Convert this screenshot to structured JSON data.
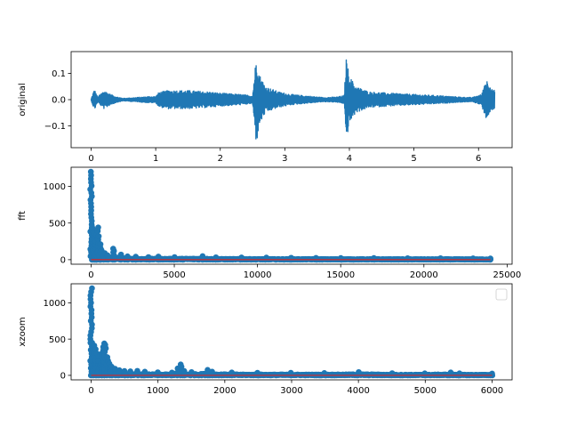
{
  "figure": {
    "background": "#ffffff"
  },
  "colors": {
    "series": "#1f77b4",
    "baseline": "#d62728",
    "axis": "#000000"
  },
  "chart_data": [
    {
      "type": "line",
      "ylabel": "original",
      "xlim": [
        -0.31,
        6.52
      ],
      "ylim": [
        -0.183,
        0.183
      ],
      "xticks": [
        0,
        1,
        2,
        3,
        4,
        5,
        6
      ],
      "xtick_labels": [
        "0",
        "1",
        "2",
        "3",
        "4",
        "5",
        "6"
      ],
      "yticks": [
        -0.1,
        0.0,
        0.1
      ],
      "ytick_labels": [
        "−0.1",
        "0.0",
        "0.1"
      ],
      "series": [
        {
          "envelope": [
            [
              0.0,
              0.003
            ],
            [
              0.05,
              0.04
            ],
            [
              0.1,
              0.01
            ],
            [
              0.2,
              0.035
            ],
            [
              0.3,
              0.02
            ],
            [
              0.4,
              0.01
            ],
            [
              0.5,
              0.005
            ],
            [
              0.7,
              0.008
            ],
            [
              0.9,
              0.012
            ],
            [
              1.0,
              0.012
            ],
            [
              1.05,
              0.028
            ],
            [
              1.2,
              0.035
            ],
            [
              1.5,
              0.035
            ],
            [
              1.8,
              0.03
            ],
            [
              2.0,
              0.025
            ],
            [
              2.3,
              0.02
            ],
            [
              2.5,
              0.015
            ],
            [
              2.56,
              0.175
            ],
            [
              2.6,
              0.1
            ],
            [
              2.7,
              0.05
            ],
            [
              2.9,
              0.03
            ],
            [
              3.1,
              0.02
            ],
            [
              3.3,
              0.015
            ],
            [
              3.6,
              0.008
            ],
            [
              3.8,
              0.01
            ],
            [
              3.92,
              0.015
            ],
            [
              3.95,
              0.16
            ],
            [
              4.0,
              0.09
            ],
            [
              4.1,
              0.05
            ],
            [
              4.3,
              0.03
            ],
            [
              4.6,
              0.025
            ],
            [
              5.0,
              0.02
            ],
            [
              5.4,
              0.015
            ],
            [
              5.7,
              0.01
            ],
            [
              5.9,
              0.008
            ],
            [
              6.05,
              0.02
            ],
            [
              6.1,
              0.07
            ],
            [
              6.15,
              0.075
            ],
            [
              6.2,
              0.04
            ],
            [
              6.25,
              0.035
            ]
          ]
        }
      ]
    },
    {
      "type": "scatter",
      "ylabel": "fft",
      "xlim": [
        -1200,
        25300
      ],
      "ylim": [
        -62,
        1262
      ],
      "xticks": [
        0,
        5000,
        10000,
        15000,
        20000,
        25000
      ],
      "xtick_labels": [
        "0",
        "5000",
        "10000",
        "15000",
        "20000",
        "25000"
      ],
      "yticks": [
        0,
        500,
        1000
      ],
      "ytick_labels": [
        "0",
        "500",
        "1000"
      ],
      "series": [
        {
          "x_max": 24000,
          "peaks": [
            [
              0,
              1200
            ],
            [
              80,
              450
            ],
            [
              150,
              420
            ],
            [
              200,
              360
            ],
            [
              250,
              300
            ],
            [
              300,
              250
            ],
            [
              380,
              440
            ],
            [
              450,
              320
            ],
            [
              520,
              210
            ],
            [
              620,
              130
            ],
            [
              800,
              90
            ],
            [
              1000,
              60
            ],
            [
              1330,
              150
            ],
            [
              1400,
              120
            ],
            [
              1750,
              70
            ],
            [
              2200,
              45
            ],
            [
              2700,
              40
            ],
            [
              3500,
              35
            ],
            [
              4000,
              42
            ],
            [
              5000,
              35
            ],
            [
              6700,
              48
            ],
            [
              7500,
              32
            ],
            [
              9000,
              30
            ],
            [
              10500,
              28
            ],
            [
              12000,
              26
            ],
            [
              13500,
              24
            ],
            [
              15000,
              22
            ],
            [
              17000,
              22
            ],
            [
              19000,
              20
            ],
            [
              21000,
              20
            ],
            [
              23000,
              18
            ],
            [
              24000,
              16
            ]
          ]
        }
      ]
    },
    {
      "type": "scatter",
      "ylabel": "xzoom",
      "legend": "upper right",
      "xlim": [
        -300,
        6300
      ],
      "ylim": [
        -62,
        1262
      ],
      "xticks": [
        0,
        1000,
        2000,
        3000,
        4000,
        5000,
        6000
      ],
      "xtick_labels": [
        "0",
        "1000",
        "2000",
        "3000",
        "4000",
        "5000",
        "6000"
      ],
      "yticks": [
        0,
        500,
        1000
      ],
      "ytick_labels": [
        "0",
        "500",
        "1000"
      ],
      "series": [
        {
          "x_max": 6000,
          "peaks": [
            [
              0,
              1200
            ],
            [
              20,
              450
            ],
            [
              40,
              410
            ],
            [
              60,
              360
            ],
            [
              80,
              300
            ],
            [
              100,
              250
            ],
            [
              120,
              200
            ],
            [
              150,
              160
            ],
            [
              170,
              300
            ],
            [
              190,
              440
            ],
            [
              210,
              420
            ],
            [
              240,
              250
            ],
            [
              270,
              160
            ],
            [
              300,
              120
            ],
            [
              350,
              90
            ],
            [
              420,
              70
            ],
            [
              500,
              60
            ],
            [
              600,
              55
            ],
            [
              700,
              62
            ],
            [
              800,
              50
            ],
            [
              1000,
              42
            ],
            [
              1200,
              38
            ],
            [
              1300,
              95
            ],
            [
              1330,
              150
            ],
            [
              1360,
              120
            ],
            [
              1400,
              60
            ],
            [
              1500,
              45
            ],
            [
              1750,
              75
            ],
            [
              1800,
              50
            ],
            [
              2100,
              40
            ],
            [
              2500,
              35
            ],
            [
              3000,
              35
            ],
            [
              3500,
              32
            ],
            [
              4000,
              45
            ],
            [
              4500,
              30
            ],
            [
              5000,
              28
            ],
            [
              5370,
              40
            ],
            [
              5500,
              28
            ],
            [
              6000,
              25
            ]
          ]
        }
      ]
    }
  ]
}
